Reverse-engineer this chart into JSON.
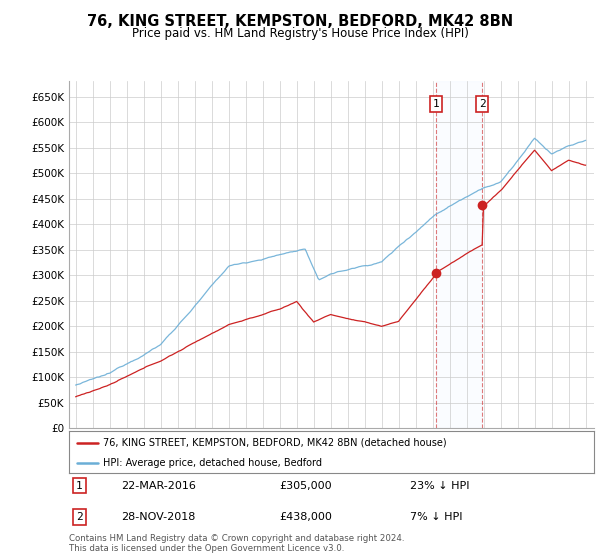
{
  "title": "76, KING STREET, KEMPSTON, BEDFORD, MK42 8BN",
  "subtitle": "Price paid vs. HM Land Registry's House Price Index (HPI)",
  "legend_line1": "76, KING STREET, KEMPSTON, BEDFORD, MK42 8BN (detached house)",
  "legend_line2": "HPI: Average price, detached house, Bedford",
  "footer": "Contains HM Land Registry data © Crown copyright and database right 2024.\nThis data is licensed under the Open Government Licence v3.0.",
  "hpi_color": "#6baed6",
  "price_color": "#cc2222",
  "sale1_year": 2016.2,
  "sale1_price": 305000,
  "sale1_label": "1",
  "sale1_date": "22-MAR-2016",
  "sale1_pct": "23% ↓ HPI",
  "sale2_year": 2018.92,
  "sale2_price": 438000,
  "sale2_label": "2",
  "sale2_date": "28-NOV-2018",
  "sale2_pct": "7% ↓ HPI",
  "ylim": [
    0,
    680000
  ],
  "yticks": [
    0,
    50000,
    100000,
    150000,
    200000,
    250000,
    300000,
    350000,
    400000,
    450000,
    500000,
    550000,
    600000,
    650000
  ],
  "xlim_left": 1994.6,
  "xlim_right": 2025.5,
  "background_color": "#ffffff",
  "grid_color": "#cccccc",
  "shade_color": "#ddeeff"
}
